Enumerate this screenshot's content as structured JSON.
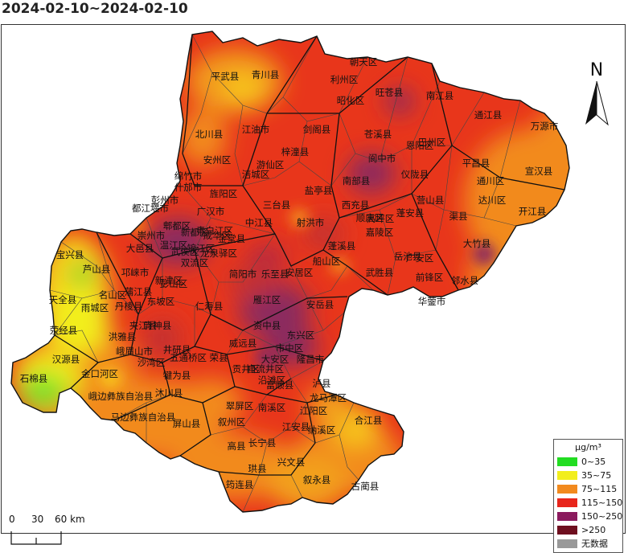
{
  "title": "2024-02-10~2024-02-10",
  "north_label": "N",
  "scale": {
    "ticks": [
      "0",
      "30",
      "60 km"
    ]
  },
  "legend": {
    "unit": "μg/m³",
    "items": [
      {
        "label": "0~35",
        "color": "#22dd22"
      },
      {
        "label": "35~75",
        "color": "#f2ee1c"
      },
      {
        "label": "75~115",
        "color": "#f28a1e"
      },
      {
        "label": "115~150",
        "color": "#e8251b"
      },
      {
        "label": "150~250",
        "color": "#8b1a5e"
      },
      {
        "label": ">250",
        "color": "#6e0f1f"
      },
      {
        "label": "无数据",
        "color": "#999999"
      }
    ]
  },
  "regions": [
    "平武县",
    "青川县",
    "朝天区",
    "利州区",
    "旺苍县",
    "昭化区",
    "南江县",
    "通江县",
    "万源市",
    "北川县",
    "江油市",
    "剑阁县",
    "苍溪县",
    "巴州区",
    "平昌县",
    "宣汉县",
    "安州区",
    "梓潼县",
    "阆中市",
    "恩阳区",
    "绵竹市",
    "游仙区",
    "涪城区",
    "仪陇县",
    "营山县",
    "通川区",
    "什邡市",
    "旌阳区",
    "南部县",
    "达川区",
    "彭州市",
    "广汉市",
    "三台县",
    "盐亭县",
    "西充县",
    "开江县",
    "都江堰市",
    "中江县",
    "射洪市",
    "顺庆区",
    "嘉陵区",
    "渠县",
    "大竹县",
    "金堂县",
    "蓬溪县",
    "蓬安县",
    "高坪区",
    "岳池县",
    "宝兴县",
    "芦山县",
    "大邑县",
    "崇州市",
    "郫都区",
    "新都区",
    "青白江区",
    "温江区",
    "成华区",
    "锦江区",
    "武侯区",
    "双流区",
    "龙泉驿区",
    "简阳市",
    "乐至县",
    "安居区",
    "船山区",
    "武胜县",
    "广安区",
    "前锋区",
    "邻水县",
    "华蓥市",
    "天全县",
    "名山区",
    "雨城区",
    "邛崃市",
    "蒲江县",
    "新津区",
    "彭山区",
    "东坡区",
    "丹棱县",
    "洪雅县",
    "仁寿县",
    "雁江区",
    "安岳县",
    "荥经县",
    "青神县",
    "井研县",
    "威远县",
    "资中县",
    "东兴区",
    "市中区",
    "汉源县",
    "石棉县",
    "峨眉山市",
    "夹江县",
    "沙湾区",
    "五通桥区",
    "犍为县",
    "荣县",
    "贡井区",
    "自流井区",
    "大安区",
    "沿滩区",
    "富顺县",
    "隆昌市",
    "金口河区",
    "峨边彝族自治县",
    "沐川县",
    "屏山县",
    "泸县",
    "龙马潭区",
    "江阳区",
    "合江县",
    "马边彝族自治县",
    "翠屏区",
    "南溪区",
    "江安县",
    "纳溪区",
    "叙州区",
    "长宁县",
    "高县",
    "兴文县",
    "珙县",
    "叙永县",
    "筠连县",
    "古蔺县"
  ]
}
